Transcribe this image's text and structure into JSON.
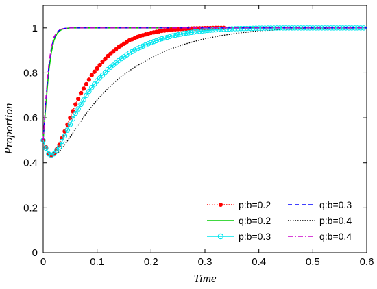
{
  "chart_data": {
    "type": "line",
    "title": "",
    "xlabel": "Time",
    "ylabel": "Proportion",
    "xlim": [
      0,
      0.6
    ],
    "ylim": [
      0,
      1.1
    ],
    "xticks": [
      "0",
      "0.1",
      "0.2",
      "0.3",
      "0.4",
      "0.5",
      "0.6"
    ],
    "yticks": [
      "0",
      "0.2",
      "0.4",
      "0.6",
      "0.8",
      "1"
    ],
    "grid": false,
    "legend_position": "bottom-right",
    "series": [
      {
        "name": "p:b=0.2",
        "color": "#ff0000",
        "style": "dotted-filled-dot",
        "x": [
          0,
          0.01,
          0.015,
          0.02,
          0.03,
          0.04,
          0.05,
          0.06,
          0.07,
          0.08,
          0.09,
          0.1,
          0.11,
          0.12,
          0.13,
          0.14,
          0.15,
          0.16,
          0.18,
          0.2,
          0.22,
          0.24,
          0.26,
          0.28,
          0.3,
          0.32,
          0.34
        ],
        "y": [
          0.5,
          0.44,
          0.435,
          0.44,
          0.48,
          0.54,
          0.6,
          0.66,
          0.71,
          0.75,
          0.79,
          0.82,
          0.85,
          0.875,
          0.895,
          0.915,
          0.93,
          0.945,
          0.965,
          0.978,
          0.987,
          0.993,
          0.996,
          0.998,
          0.999,
          1.0,
          1.0
        ]
      },
      {
        "name": "q:b=0.3",
        "color": "#0000ff",
        "style": "dashed",
        "x": [
          0,
          0.005,
          0.01,
          0.015,
          0.02,
          0.025,
          0.03,
          0.035,
          0.04,
          0.05,
          0.06,
          0.1,
          0.2,
          0.3,
          0.4,
          0.5,
          0.6
        ],
        "y": [
          0.5,
          0.68,
          0.82,
          0.91,
          0.955,
          0.978,
          0.99,
          0.996,
          0.998,
          1.0,
          1.0,
          1.0,
          1.0,
          1.0,
          1.0,
          1.0,
          1.0
        ]
      },
      {
        "name": "q:b=0.2",
        "color": "#00cc00",
        "style": "solid",
        "x": [
          0,
          0.005,
          0.01,
          0.015,
          0.02,
          0.025,
          0.03,
          0.035,
          0.04,
          0.05,
          0.06,
          0.1,
          0.2,
          0.3,
          0.4,
          0.5,
          0.6
        ],
        "y": [
          0.5,
          0.66,
          0.8,
          0.89,
          0.945,
          0.972,
          0.986,
          0.994,
          0.997,
          1.0,
          1.0,
          1.0,
          1.0,
          1.0,
          1.0,
          1.0,
          1.0
        ]
      },
      {
        "name": "p:b=0.4",
        "color": "#000000",
        "style": "dotted",
        "x": [
          0,
          0.01,
          0.015,
          0.02,
          0.03,
          0.04,
          0.06,
          0.08,
          0.1,
          0.12,
          0.14,
          0.16,
          0.18,
          0.2,
          0.22,
          0.24,
          0.26,
          0.28,
          0.3,
          0.33,
          0.36,
          0.4,
          0.45,
          0.5,
          0.55,
          0.6
        ],
        "y": [
          0.5,
          0.435,
          0.43,
          0.435,
          0.45,
          0.48,
          0.55,
          0.62,
          0.68,
          0.73,
          0.775,
          0.81,
          0.84,
          0.867,
          0.89,
          0.91,
          0.926,
          0.94,
          0.952,
          0.966,
          0.977,
          0.987,
          0.994,
          0.997,
          0.999,
          1.0
        ]
      },
      {
        "name": "p:b=0.3",
        "color": "#00e5ee",
        "style": "solid-open-circle",
        "x": [
          0,
          0.005,
          0.01,
          0.015,
          0.02,
          0.03,
          0.04,
          0.05,
          0.06,
          0.07,
          0.08,
          0.09,
          0.1,
          0.11,
          0.12,
          0.13,
          0.14,
          0.15,
          0.16,
          0.17,
          0.18,
          0.19,
          0.2,
          0.22,
          0.24,
          0.26,
          0.28,
          0.3,
          0.32,
          0.35,
          0.4,
          0.45,
          0.5,
          0.55,
          0.6
        ],
        "y": [
          0.5,
          0.465,
          0.44,
          0.433,
          0.44,
          0.47,
          0.52,
          0.57,
          0.62,
          0.66,
          0.7,
          0.735,
          0.765,
          0.79,
          0.815,
          0.835,
          0.855,
          0.872,
          0.888,
          0.902,
          0.914,
          0.925,
          0.935,
          0.952,
          0.965,
          0.975,
          0.982,
          0.988,
          0.992,
          0.996,
          0.999,
          1.0,
          1.0,
          1.0,
          1.0
        ]
      },
      {
        "name": "q:b=0.4",
        "color": "#cc00cc",
        "style": "dashdot",
        "x": [
          0,
          0.005,
          0.01,
          0.015,
          0.02,
          0.025,
          0.03,
          0.035,
          0.04,
          0.05,
          0.06,
          0.1,
          0.2,
          0.3,
          0.4,
          0.5,
          0.6
        ],
        "y": [
          0.5,
          0.69,
          0.83,
          0.915,
          0.96,
          0.98,
          0.991,
          0.996,
          0.998,
          1.0,
          1.0,
          1.0,
          1.0,
          1.0,
          1.0,
          1.0,
          1.0
        ]
      }
    ]
  }
}
